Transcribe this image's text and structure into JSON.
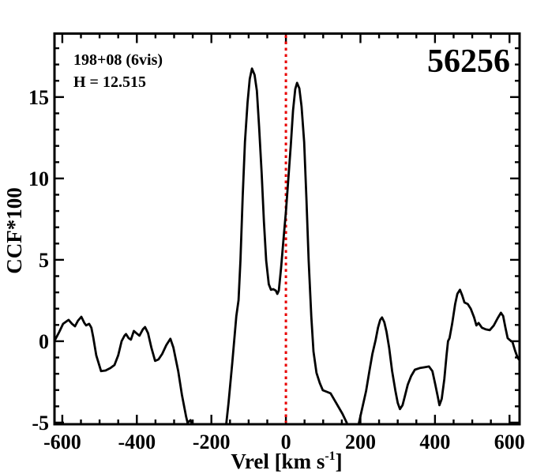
{
  "chart_data": {
    "type": "line",
    "annotations": {
      "field_label": "198+08 (6vis)",
      "h_label": "H = 12.515",
      "star_id": "56256"
    },
    "xlabel_main": "Vrel [km s",
    "xlabel_sup": "-1",
    "xlabel_close": "]",
    "ylabel": "CCF*100",
    "xlim": [
      -621,
      627
    ],
    "ylim": [
      -5.1,
      18.9
    ],
    "x_axis": {
      "major_ticks": [
        -600,
        -400,
        -200,
        0,
        200,
        400,
        600
      ],
      "major_labels": [
        "-600",
        "-400",
        "-200",
        "0",
        "200",
        "400",
        "600"
      ],
      "minor_step": 50,
      "minor_range": [
        -600,
        600
      ]
    },
    "y_axis": {
      "major_ticks": [
        -5,
        0,
        5,
        10,
        15
      ],
      "major_labels": [
        "-5",
        "0",
        "5",
        "10",
        "15"
      ],
      "minor_step": 1,
      "minor_range": [
        -5,
        18
      ]
    },
    "ref_line": {
      "x": 0,
      "color": "#e80000",
      "style": "dotted"
    },
    "line_color": "#000000",
    "legend": null,
    "grid": false,
    "series": [
      {
        "name": "CCF",
        "points": [
          [
            -619,
            0.1
          ],
          [
            -608,
            0.58
          ],
          [
            -598,
            1.07
          ],
          [
            -583,
            1.31
          ],
          [
            -574,
            1.07
          ],
          [
            -566,
            0.92
          ],
          [
            -558,
            1.26
          ],
          [
            -549,
            1.5
          ],
          [
            -541,
            1.12
          ],
          [
            -536,
            0.97
          ],
          [
            -528,
            1.07
          ],
          [
            -522,
            0.83
          ],
          [
            -517,
            0.24
          ],
          [
            -509,
            -0.87
          ],
          [
            -496,
            -1.84
          ],
          [
            -484,
            -1.8
          ],
          [
            -471,
            -1.65
          ],
          [
            -460,
            -1.46
          ],
          [
            -450,
            -0.87
          ],
          [
            -441,
            0.0
          ],
          [
            -433,
            0.34
          ],
          [
            -429,
            0.44
          ],
          [
            -422,
            0.19
          ],
          [
            -416,
            0.1
          ],
          [
            -408,
            0.63
          ],
          [
            -401,
            0.49
          ],
          [
            -393,
            0.34
          ],
          [
            -384,
            0.73
          ],
          [
            -378,
            0.87
          ],
          [
            -370,
            0.49
          ],
          [
            -361,
            -0.39
          ],
          [
            -351,
            -1.21
          ],
          [
            -342,
            -1.12
          ],
          [
            -332,
            -0.78
          ],
          [
            -321,
            -0.24
          ],
          [
            -310,
            0.15
          ],
          [
            -302,
            -0.39
          ],
          [
            -289,
            -1.84
          ],
          [
            -279,
            -3.3
          ],
          [
            -268,
            -4.61
          ],
          [
            -264,
            -5.0
          ],
          [
            -256,
            -4.85
          ],
          [
            -249,
            -5.3
          ],
          [
            -240,
            -6.2
          ],
          [
            -225,
            -6.9
          ],
          [
            -205,
            -6.6
          ],
          [
            -185,
            -6.0
          ],
          [
            -170,
            -5.6
          ],
          [
            -160,
            -5.05
          ],
          [
            -154,
            -3.8
          ],
          [
            -144,
            -1.36
          ],
          [
            -133,
            1.55
          ],
          [
            -127,
            2.52
          ],
          [
            -122,
            4.95
          ],
          [
            -116,
            8.83
          ],
          [
            -110,
            12.23
          ],
          [
            -103,
            14.66
          ],
          [
            -97,
            16.12
          ],
          [
            -91,
            16.75
          ],
          [
            -84,
            16.36
          ],
          [
            -78,
            15.39
          ],
          [
            -72,
            13.2
          ],
          [
            -65,
            10.29
          ],
          [
            -59,
            7.38
          ],
          [
            -53,
            4.95
          ],
          [
            -46,
            3.5
          ],
          [
            -40,
            3.16
          ],
          [
            -34,
            3.2
          ],
          [
            -27,
            3.11
          ],
          [
            -23,
            2.91
          ],
          [
            -19,
            3.11
          ],
          [
            -13,
            4.47
          ],
          [
            -6,
            6.41
          ],
          [
            0,
            7.96
          ],
          [
            6,
            9.81
          ],
          [
            13,
            11.99
          ],
          [
            19,
            14.17
          ],
          [
            25,
            15.49
          ],
          [
            30,
            15.87
          ],
          [
            36,
            15.53
          ],
          [
            42,
            14.42
          ],
          [
            49,
            12.23
          ],
          [
            55,
            8.83
          ],
          [
            61,
            4.95
          ],
          [
            68,
            1.55
          ],
          [
            74,
            -0.63
          ],
          [
            82,
            -1.94
          ],
          [
            91,
            -2.57
          ],
          [
            99,
            -3.01
          ],
          [
            110,
            -3.11
          ],
          [
            120,
            -3.2
          ],
          [
            131,
            -3.64
          ],
          [
            141,
            -4.03
          ],
          [
            152,
            -4.47
          ],
          [
            163,
            -5.0
          ],
          [
            172,
            -5.8
          ],
          [
            181,
            -6.1
          ],
          [
            188,
            -5.7
          ],
          [
            194,
            -5.24
          ],
          [
            201,
            -4.51
          ],
          [
            209,
            -3.69
          ],
          [
            215,
            -3.06
          ],
          [
            224,
            -1.84
          ],
          [
            232,
            -0.78
          ],
          [
            241,
            0.1
          ],
          [
            247,
            0.83
          ],
          [
            253,
            1.31
          ],
          [
            258,
            1.46
          ],
          [
            264,
            1.17
          ],
          [
            270,
            0.58
          ],
          [
            277,
            -0.39
          ],
          [
            285,
            -1.84
          ],
          [
            294,
            -3.06
          ],
          [
            300,
            -3.79
          ],
          [
            306,
            -4.17
          ],
          [
            313,
            -3.93
          ],
          [
            319,
            -3.4
          ],
          [
            327,
            -2.67
          ],
          [
            336,
            -2.14
          ],
          [
            346,
            -1.75
          ],
          [
            359,
            -1.65
          ],
          [
            372,
            -1.6
          ],
          [
            384,
            -1.55
          ],
          [
            393,
            -1.84
          ],
          [
            401,
            -2.67
          ],
          [
            408,
            -3.45
          ],
          [
            412,
            -3.93
          ],
          [
            418,
            -3.54
          ],
          [
            425,
            -2.33
          ],
          [
            431,
            -0.87
          ],
          [
            435,
            0.0
          ],
          [
            439,
            0.19
          ],
          [
            446,
            1.07
          ],
          [
            454,
            2.28
          ],
          [
            460,
            2.91
          ],
          [
            467,
            3.16
          ],
          [
            473,
            2.82
          ],
          [
            479,
            2.38
          ],
          [
            488,
            2.28
          ],
          [
            496,
            1.99
          ],
          [
            505,
            1.46
          ],
          [
            511,
            0.97
          ],
          [
            517,
            1.12
          ],
          [
            526,
            0.83
          ],
          [
            536,
            0.73
          ],
          [
            547,
            0.68
          ],
          [
            558,
            0.97
          ],
          [
            568,
            1.41
          ],
          [
            577,
            1.75
          ],
          [
            583,
            1.55
          ],
          [
            589,
            0.83
          ],
          [
            595,
            0.19
          ],
          [
            602,
            0.05
          ],
          [
            608,
            -0.05
          ],
          [
            615,
            -0.58
          ],
          [
            621,
            -0.97
          ],
          [
            625,
            -1.12
          ]
        ]
      }
    ]
  }
}
